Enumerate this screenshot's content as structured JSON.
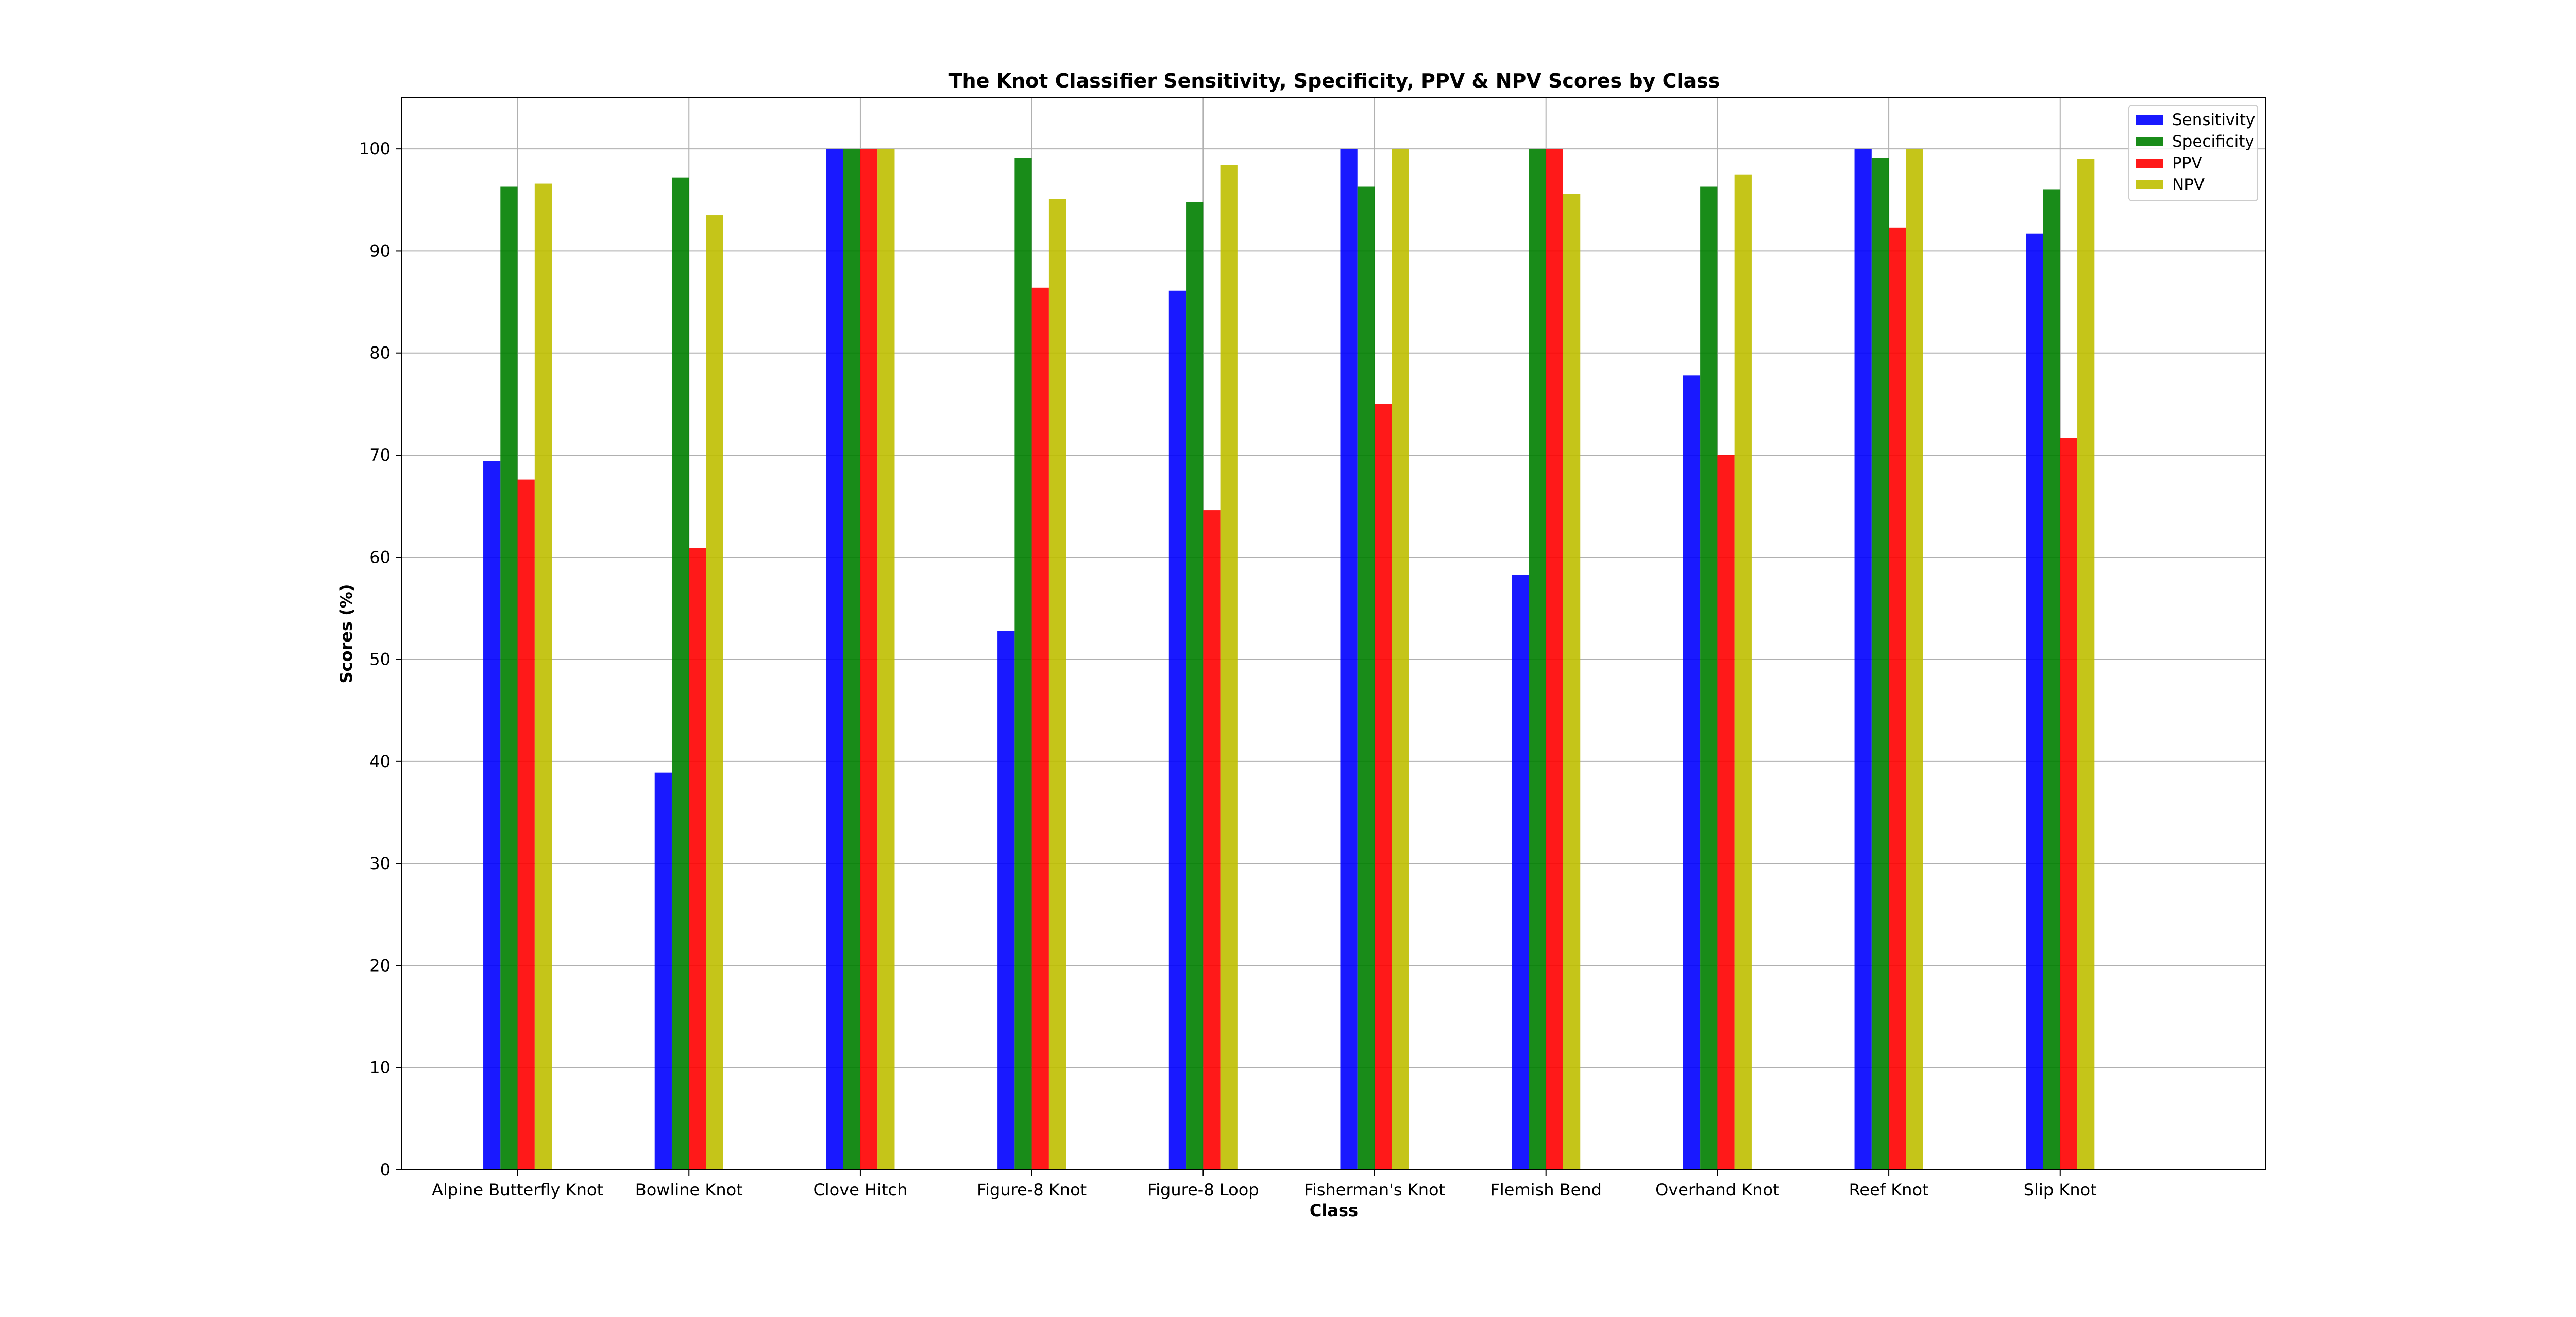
{
  "chart_data": {
    "type": "bar",
    "title": "The Knot Classifier Sensitivity, Specificity, PPV & NPV Scores by Class",
    "xlabel": "Class",
    "ylabel": "Scores (%)",
    "ylim": [
      0,
      105
    ],
    "yticks": [
      0,
      10,
      20,
      30,
      40,
      50,
      60,
      70,
      80,
      90,
      100
    ],
    "grid": true,
    "legend_position": "top-right",
    "categories": [
      "Alpine Butterfly Knot",
      "Bowline Knot",
      "Clove Hitch",
      "Figure-8 Knot",
      "Figure-8 Loop",
      "Fisherman's Knot",
      "Flemish Bend",
      "Overhand Knot",
      "Reef Knot",
      "Slip Knot"
    ],
    "series": [
      {
        "name": "Sensitivity",
        "color": "#0000ff",
        "values": [
          69.4,
          38.9,
          100,
          52.8,
          86.1,
          100,
          58.3,
          77.8,
          100,
          91.7
        ]
      },
      {
        "name": "Specificity",
        "color": "#008000",
        "values": [
          96.3,
          97.2,
          100,
          99.1,
          94.8,
          96.3,
          100,
          96.3,
          99.1,
          96.0
        ]
      },
      {
        "name": "PPV",
        "color": "#ff0000",
        "values": [
          67.6,
          60.9,
          100,
          86.4,
          64.6,
          75.0,
          100,
          70.0,
          92.3,
          71.7
        ]
      },
      {
        "name": "NPV",
        "color": "#bfbf00",
        "values": [
          96.6,
          93.5,
          100,
          95.1,
          98.4,
          100,
          95.6,
          97.5,
          100,
          99.0
        ]
      }
    ]
  }
}
